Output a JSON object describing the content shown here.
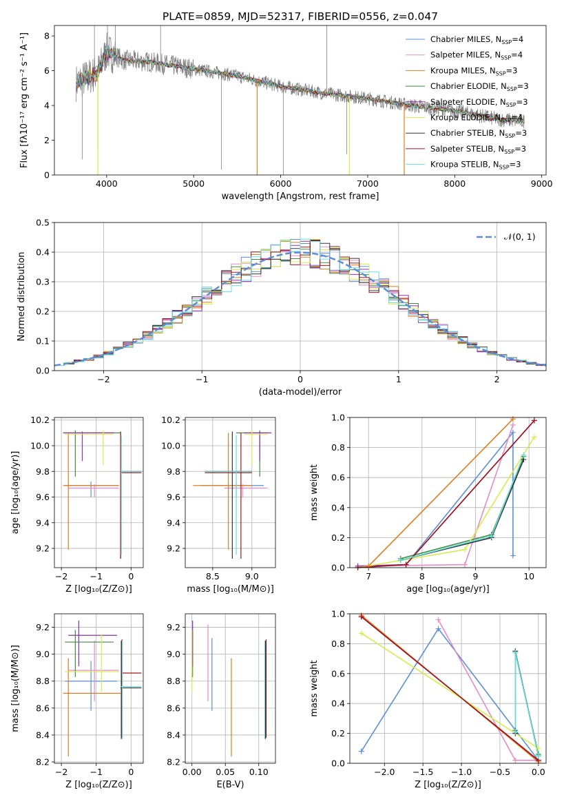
{
  "figure": {
    "title": "PLATE=0859, MJD=52317, FIBERID=0556, z=0.047"
  },
  "models": [
    {
      "name": "Chabrier MILES",
      "nssp": "4",
      "color": "#5a8fd8"
    },
    {
      "name": "Salpeter MILES",
      "nssp": "4",
      "color": "#e58ac6"
    },
    {
      "name": "Kroupa MILES",
      "nssp": "3",
      "color": "#e07b1e"
    },
    {
      "name": "Chabrier ELODIE",
      "nssp": "3",
      "color": "#3d8a3d"
    },
    {
      "name": "Salpeter ELODIE",
      "nssp": "3",
      "color": "#8e2fb0"
    },
    {
      "name": "Kroupa ELODIE",
      "nssp": "4",
      "color": "#d6ec4a"
    },
    {
      "name": "Chabrier STELIB",
      "nssp": "3",
      "color": "#333333"
    },
    {
      "name": "Salpeter STELIB",
      "nssp": "3",
      "color": "#a01515"
    },
    {
      "name": "Kroupa STELIB",
      "nssp": "3",
      "color": "#66dde0"
    }
  ],
  "chart_data": [
    {
      "type": "line",
      "id": "spectrum",
      "xlabel": "wavelength [Angstrom, rest frame]",
      "ylabel": "Flux [fλ10⁻¹⁷ erg cm⁻² s⁻¹ A⁻¹]",
      "xlim": [
        3400,
        9050
      ],
      "ylim": [
        0,
        8.6
      ],
      "xticks": [
        4000,
        5000,
        6000,
        7000,
        8000,
        9000
      ],
      "yticks": [
        0,
        2,
        4,
        6,
        8
      ],
      "continuum": {
        "x": [
          3650,
          3900,
          4000,
          4200,
          4500,
          5000,
          5500,
          6000,
          6500,
          7000,
          7500,
          8000,
          8500,
          8800
        ],
        "y": [
          5.3,
          5.9,
          7.1,
          6.6,
          6.5,
          6.1,
          5.7,
          5.1,
          4.7,
          4.4,
          4.0,
          3.7,
          3.2,
          3.1
        ]
      },
      "data_color": "#808080"
    },
    {
      "type": "bar",
      "id": "residuals",
      "xlabel": "(data-model)/error",
      "ylabel": "Normed distribution",
      "xlim": [
        -2.5,
        2.5
      ],
      "ylim": [
        0,
        0.5
      ],
      "xticks": [
        -2,
        -1,
        0,
        1,
        2
      ],
      "yticks": [
        0,
        0.1,
        0.2,
        0.3,
        0.4,
        0.5
      ],
      "bin_width": 0.1,
      "grid": true,
      "legend": "𝒩(0, 1)",
      "legend_color": "#5a8fd8",
      "legend_position": "top-right"
    },
    {
      "type": "scatter",
      "id": "age_vs_Z",
      "xlabel": "Z [log₁₀(Z/Z⊙)]",
      "ylabel": "age  [log₁₀(age/yr)]",
      "xlim": [
        -2.2,
        0.35
      ],
      "ylim": [
        9.05,
        10.22
      ],
      "xticks": [
        -2,
        -1,
        0
      ],
      "yticks": [
        9.2,
        9.4,
        9.6,
        9.8,
        10.0,
        10.2
      ],
      "errorbars": [
        {
          "m": 0,
          "x": -1.15,
          "y": 9.69,
          "x0": -1.9,
          "x1": -0.35,
          "y0": 9.6,
          "y1": 9.72
        },
        {
          "m": 1,
          "x": -1.05,
          "y": 9.67,
          "x0": -1.8,
          "x1": -0.35,
          "y0": 9.6,
          "y1": 9.7
        },
        {
          "m": 2,
          "x": -1.8,
          "y": 9.69,
          "x0": -1.95,
          "x1": -0.35,
          "y0": 9.19,
          "y1": 10.1
        },
        {
          "m": 3,
          "x": -1.6,
          "y": 10.1,
          "x0": -1.95,
          "x1": -0.3,
          "y0": 9.76,
          "y1": 10.12
        },
        {
          "m": 4,
          "x": -1.4,
          "y": 10.1,
          "x0": -1.95,
          "x1": -0.5,
          "y0": 9.88,
          "y1": 10.11
        },
        {
          "m": 5,
          "x": -0.8,
          "y": 10.09,
          "x0": -1.9,
          "x1": -0.5,
          "y0": 9.85,
          "y1": 10.12
        },
        {
          "m": 6,
          "x": -0.3,
          "y": 9.8,
          "x0": -0.3,
          "x1": 0.3,
          "y0": 9.12,
          "y1": 10.11
        },
        {
          "m": 7,
          "x": -0.3,
          "y": 9.79,
          "x0": -0.3,
          "x1": 0.3,
          "y0": 9.12,
          "y1": 10.1
        },
        {
          "m": 8,
          "x": -0.28,
          "y": 9.8,
          "x0": -0.28,
          "x1": 0.3,
          "y0": 9.15,
          "y1": 10.08
        }
      ]
    },
    {
      "type": "scatter",
      "id": "age_vs_mass",
      "xlabel": "mass [log₁₀(M/M⊙)]",
      "ylabel": "",
      "xlim": [
        8.15,
        9.3
      ],
      "ylim": [
        9.05,
        10.22
      ],
      "xticks": [
        8.5,
        9.0
      ],
      "yticks": [
        9.2,
        9.4,
        9.6,
        9.8,
        10.0,
        10.2
      ],
      "errorbars": [
        {
          "m": 0,
          "x": 8.8,
          "y": 9.69,
          "x0": 8.35,
          "x1": 9.15,
          "y0": 9.6,
          "y1": 9.72
        },
        {
          "m": 1,
          "x": 8.88,
          "y": 9.67,
          "x0": 8.65,
          "x1": 9.2,
          "y0": 9.6,
          "y1": 9.7
        },
        {
          "m": 2,
          "x": 8.7,
          "y": 9.69,
          "x0": 8.25,
          "x1": 9.0,
          "y0": 9.19,
          "y1": 10.1
        },
        {
          "m": 3,
          "x": 9.1,
          "y": 10.1,
          "x0": 8.8,
          "x1": 9.2,
          "y0": 9.76,
          "y1": 10.12
        },
        {
          "m": 4,
          "x": 9.1,
          "y": 10.1,
          "x0": 8.9,
          "x1": 9.25,
          "y0": 9.88,
          "y1": 10.11
        },
        {
          "m": 5,
          "x": 9.0,
          "y": 10.09,
          "x0": 8.9,
          "x1": 9.2,
          "y0": 9.85,
          "y1": 10.12
        },
        {
          "m": 6,
          "x": 8.75,
          "y": 9.8,
          "x0": 8.4,
          "x1": 9.0,
          "y0": 9.12,
          "y1": 10.11
        },
        {
          "m": 7,
          "x": 8.86,
          "y": 9.79,
          "x0": 8.4,
          "x1": 9.0,
          "y0": 9.12,
          "y1": 10.1
        },
        {
          "m": 8,
          "x": 8.8,
          "y": 9.8,
          "x0": 8.4,
          "x1": 9.0,
          "y0": 9.15,
          "y1": 10.08
        }
      ]
    },
    {
      "type": "line",
      "id": "weight_vs_age",
      "xlabel": "age  [log₁₀(age/yr)]",
      "ylabel": "mass weight",
      "xlim": [
        6.65,
        10.32
      ],
      "ylim": [
        0,
        1.0
      ],
      "xticks": [
        7,
        8,
        9,
        10
      ],
      "yticks": [
        0,
        0.2,
        0.4,
        0.6,
        0.8,
        1.0
      ],
      "series": [
        {
          "m": 0,
          "x": [
            6.8,
            7.7,
            9.7,
            9.7
          ],
          "y": [
            0.0,
            0.02,
            0.9,
            0.08
          ]
        },
        {
          "m": 1,
          "x": [
            6.8,
            8.8,
            9.7
          ],
          "y": [
            0.01,
            0.02,
            0.95
          ]
        },
        {
          "m": 2,
          "x": [
            7.0,
            9.7
          ],
          "y": [
            0.01,
            0.99
          ]
        },
        {
          "m": 3,
          "x": [
            7.6,
            9.3,
            9.9
          ],
          "y": [
            0.06,
            0.22,
            0.74
          ]
        },
        {
          "m": 4,
          "x": [
            6.8,
            7.7,
            10.1
          ],
          "y": [
            0.01,
            0.02,
            0.98
          ]
        },
        {
          "m": 5,
          "x": [
            6.8,
            8.8,
            10.1
          ],
          "y": [
            0.0,
            0.12,
            0.87
          ]
        },
        {
          "m": 6,
          "x": [
            7.6,
            9.3,
            9.9
          ],
          "y": [
            0.05,
            0.2,
            0.72
          ]
        },
        {
          "m": 7,
          "x": [
            6.8,
            7.7,
            10.1
          ],
          "y": [
            0.0,
            0.02,
            0.98
          ]
        },
        {
          "m": 8,
          "x": [
            7.6,
            9.3,
            9.9
          ],
          "y": [
            0.05,
            0.21,
            0.75
          ]
        }
      ]
    },
    {
      "type": "scatter",
      "id": "mass_vs_Z",
      "xlabel": "Z [log₁₀(Z/Z⊙)]",
      "ylabel": "mass [log₁₀(M/M⊙)]",
      "xlim": [
        -2.2,
        0.35
      ],
      "ylim": [
        8.19,
        9.3
      ],
      "xticks": [
        -2,
        -1,
        0
      ],
      "yticks": [
        8.2,
        8.4,
        8.6,
        8.8,
        9.0,
        9.2
      ],
      "errorbars": [
        {
          "m": 0,
          "x": -1.15,
          "y": 8.8,
          "x0": -1.9,
          "x1": -0.4,
          "y0": 8.58,
          "y1": 8.95
        },
        {
          "m": 1,
          "x": -1.05,
          "y": 8.88,
          "x0": -1.8,
          "x1": -0.35,
          "y0": 8.65,
          "y1": 9.1
        },
        {
          "m": 2,
          "x": -1.8,
          "y": 8.71,
          "x0": -1.95,
          "x1": -0.3,
          "y0": 8.24,
          "y1": 8.97
        },
        {
          "m": 3,
          "x": -1.6,
          "y": 9.09,
          "x0": -1.9,
          "x1": -0.5,
          "y0": 8.83,
          "y1": 9.18
        },
        {
          "m": 4,
          "x": -1.5,
          "y": 9.14,
          "x0": -1.8,
          "x1": -0.4,
          "y0": 8.91,
          "y1": 9.25
        },
        {
          "m": 5,
          "x": -0.85,
          "y": 8.87,
          "x0": -1.9,
          "x1": -0.35,
          "y0": 8.72,
          "y1": 9.15
        },
        {
          "m": 6,
          "x": -0.28,
          "y": 8.75,
          "x0": -0.3,
          "x1": 0.3,
          "y0": 8.37,
          "y1": 9.1
        },
        {
          "m": 7,
          "x": -0.26,
          "y": 8.86,
          "x0": -0.28,
          "x1": 0.3,
          "y0": 8.38,
          "y1": 9.11
        },
        {
          "m": 8,
          "x": -0.25,
          "y": 8.76,
          "x0": -0.3,
          "x1": 0.3,
          "y0": 8.37,
          "y1": 9.1
        }
      ]
    },
    {
      "type": "scatter",
      "id": "mass_vs_EBV",
      "xlabel": "E(B-V)",
      "ylabel": "",
      "xlim": [
        -0.01,
        0.125
      ],
      "ylim": [
        8.19,
        9.3
      ],
      "xticks": [
        0.0,
        0.05,
        0.1
      ],
      "yticks": [
        8.2,
        8.4,
        8.6,
        8.8,
        9.0,
        9.2
      ],
      "errorbars": [
        {
          "m": 0,
          "x": 0.03,
          "y": 8.8,
          "x0": 0.03,
          "x1": 0.03,
          "y0": 8.58,
          "y1": 9.12
        },
        {
          "m": 1,
          "x": 0.024,
          "y": 8.88,
          "x0": 0.024,
          "x1": 0.024,
          "y0": 8.65,
          "y1": 9.22
        },
        {
          "m": 2,
          "x": 0.059,
          "y": 8.71,
          "x0": 0.059,
          "x1": 0.059,
          "y0": 8.24,
          "y1": 8.97
        },
        {
          "m": 3,
          "x": 0.001,
          "y": 9.09,
          "x0": 0.001,
          "x1": 0.001,
          "y0": 8.83,
          "y1": 9.18
        },
        {
          "m": 4,
          "x": 0.001,
          "y": 9.14,
          "x0": 0.001,
          "x1": 0.001,
          "y0": 8.91,
          "y1": 9.25
        },
        {
          "m": 5,
          "x": 0.0,
          "y": 8.87,
          "x0": 0.0,
          "x1": 0.0,
          "y0": 8.72,
          "y1": 9.18
        },
        {
          "m": 6,
          "x": 0.11,
          "y": 8.75,
          "x0": 0.11,
          "x1": 0.11,
          "y0": 8.37,
          "y1": 9.1
        },
        {
          "m": 7,
          "x": 0.111,
          "y": 8.86,
          "x0": 0.111,
          "x1": 0.111,
          "y0": 8.38,
          "y1": 9.11
        },
        {
          "m": 8,
          "x": 0.109,
          "y": 8.76,
          "x0": 0.109,
          "x1": 0.109,
          "y0": 8.37,
          "y1": 9.1
        }
      ]
    },
    {
      "type": "line",
      "id": "weight_vs_Z",
      "xlabel": "Z [log₁₀(Z/Z⊙)]",
      "ylabel": "mass weight",
      "xlim": [
        -2.45,
        0.1
      ],
      "ylim": [
        0,
        1.0
      ],
      "xticks": [
        -2.0,
        -1.5,
        -1.0,
        -0.5,
        0.0
      ],
      "yticks": [
        0,
        0.2,
        0.4,
        0.6,
        0.8,
        1.0
      ],
      "series": [
        {
          "m": 0,
          "x": [
            -2.3,
            -1.3,
            0.0
          ],
          "y": [
            0.08,
            0.9,
            0.02
          ]
        },
        {
          "m": 1,
          "x": [
            -1.3,
            -0.3,
            0.0
          ],
          "y": [
            0.96,
            0.02,
            0.02
          ]
        },
        {
          "m": 2,
          "x": [
            -2.3,
            0.0
          ],
          "y": [
            0.99,
            0.01
          ]
        },
        {
          "m": 3,
          "x": [
            -0.3,
            -0.3,
            0.0
          ],
          "y": [
            0.22,
            0.74,
            0.06
          ]
        },
        {
          "m": 4,
          "x": [
            -2.3,
            0.0
          ],
          "y": [
            0.98,
            0.02
          ]
        },
        {
          "m": 5,
          "x": [
            -2.3,
            0.0
          ],
          "y": [
            0.87,
            0.1
          ]
        },
        {
          "m": 6,
          "x": [
            -0.3,
            -0.3,
            0.0
          ],
          "y": [
            0.2,
            0.75,
            0.05
          ]
        },
        {
          "m": 7,
          "x": [
            -2.3,
            0.0
          ],
          "y": [
            0.98,
            0.02
          ]
        },
        {
          "m": 8,
          "x": [
            -0.3,
            -0.3,
            0.0
          ],
          "y": [
            0.21,
            0.74,
            0.05
          ]
        }
      ]
    }
  ]
}
